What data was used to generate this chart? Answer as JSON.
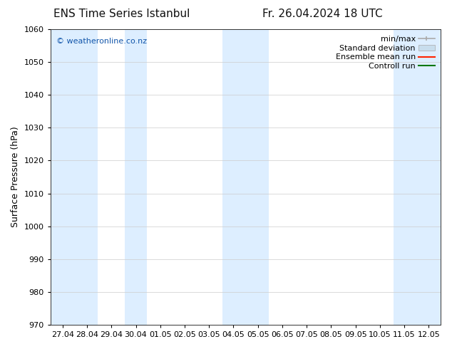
{
  "title": "ENS Time Series Istanbul",
  "title_right": "Fr. 26.04.2024 18 UTC",
  "ylabel": "Surface Pressure (hPa)",
  "ylim": [
    970,
    1060
  ],
  "yticks": [
    970,
    980,
    990,
    1000,
    1010,
    1020,
    1030,
    1040,
    1050,
    1060
  ],
  "xlabels": [
    "27.04",
    "28.04",
    "29.04",
    "30.04",
    "01.05",
    "02.05",
    "03.05",
    "04.05",
    "05.05",
    "06.05",
    "07.05",
    "08.05",
    "09.05",
    "10.05",
    "11.05",
    "12.05"
  ],
  "watermark": "© weatheronline.co.nz",
  "watermark_color": "#1155aa",
  "bg_color": "#ffffff",
  "plot_bg_color": "#ffffff",
  "shaded_band_color": "#ddeeff",
  "legend_entries": [
    "min/max",
    "Standard deviation",
    "Ensemble mean run",
    "Controll run"
  ],
  "minmax_color": "#aaaaaa",
  "std_color": "#c8dded",
  "ensemble_color": "#ff2200",
  "control_color": "#007700",
  "title_fontsize": 11,
  "ylabel_fontsize": 9,
  "tick_fontsize": 8,
  "legend_fontsize": 8
}
